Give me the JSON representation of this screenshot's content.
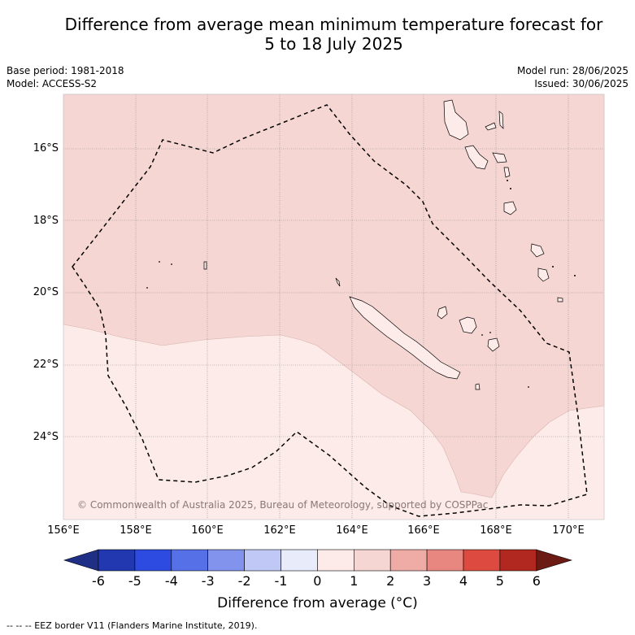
{
  "title_line1": "Difference from average mean minimum temperature forecast for",
  "title_line2": "5 to 18 July 2025",
  "base_period": "Base period: 1981-2018",
  "model": "Model: ACCESS-S2",
  "model_run": "Model run: 28/06/2025",
  "issued": "Issued: 30/06/2025",
  "credit": "© Commonwealth of Australia 2025, Bureau of Meteorology, supported by COSPPac",
  "colorbar": {
    "label": "Difference from average (°C)",
    "ticks": [
      "-6",
      "-5",
      "-4",
      "-3",
      "-2",
      "-1",
      "0",
      "1",
      "2",
      "3",
      "4",
      "5",
      "6"
    ],
    "colors": [
      "#1f2f86",
      "#2238b0",
      "#2d4be0",
      "#5670e8",
      "#8193ec",
      "#c0c8f5",
      "#e8ebfa",
      "#fcebe8",
      "#f5d6d3",
      "#efaca7",
      "#e8877f",
      "#dd4a3f",
      "#b02820",
      "#6b1a14"
    ]
  },
  "latitude_ticks": [
    "16°S",
    "18°S",
    "20°S",
    "22°S",
    "24°S"
  ],
  "longitude_ticks": [
    "156°E",
    "158°E",
    "160°E",
    "162°E",
    "164°E",
    "166°E",
    "168°E",
    "170°E"
  ],
  "legend_footer": "--  --  -- EEZ border V11 (Flanders Marine Institute, 2019).",
  "colors": {
    "anomaly_0_1": "#fcebe8",
    "anomaly_1_2": "#f5d6d3",
    "eez_line": "#000000"
  }
}
